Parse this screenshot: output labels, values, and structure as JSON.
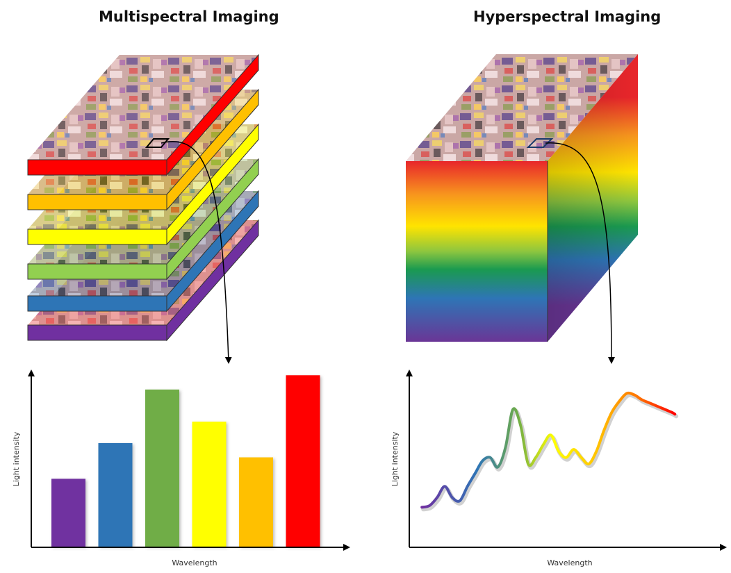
{
  "left": {
    "title": "Multispectral Imaging",
    "layers": [
      {
        "band": "violet",
        "color": "#7030a0"
      },
      {
        "band": "blue",
        "color": "#2e75b6"
      },
      {
        "band": "green",
        "color": "#92d050"
      },
      {
        "band": "yellow",
        "color": "#ffff00"
      },
      {
        "band": "orange",
        "color": "#ffc000"
      },
      {
        "band": "red",
        "color": "#ff0000"
      }
    ]
  },
  "right": {
    "title": "Hyperspectral Imaging"
  },
  "chart_data": [
    {
      "type": "bar",
      "title": "",
      "xlabel": "Wavelength",
      "ylabel": "Light intensity",
      "categories": [
        "violet",
        "blue",
        "green",
        "yellow",
        "orange",
        "red"
      ],
      "values": [
        38,
        58,
        88,
        70,
        50,
        96
      ],
      "colors": [
        "#7030a0",
        "#2e75b6",
        "#70ad47",
        "#ffff00",
        "#ffc000",
        "#ff0000"
      ],
      "ylim": [
        0,
        100
      ]
    },
    {
      "type": "line",
      "title": "",
      "xlabel": "Wavelength",
      "ylabel": "Light intensity",
      "x": [
        0,
        3,
        6,
        9,
        12,
        15,
        18,
        21,
        24,
        27,
        30,
        33,
        36,
        39,
        42,
        45,
        48,
        51,
        54,
        57,
        60,
        63,
        66,
        69,
        72,
        75,
        78,
        81,
        84,
        87,
        90,
        93,
        96,
        99,
        100
      ],
      "y": [
        25,
        26,
        31,
        38,
        31,
        29,
        38,
        46,
        54,
        56,
        50,
        62,
        86,
        76,
        52,
        56,
        64,
        70,
        60,
        56,
        61,
        56,
        52,
        60,
        73,
        84,
        91,
        96,
        95,
        92,
        90,
        88,
        86,
        84,
        83
      ],
      "xlim": [
        -5,
        120
      ],
      "ylim": [
        0,
        110
      ],
      "gradient_stops": [
        {
          "at": 0.0,
          "color": "#7030a0"
        },
        {
          "at": 0.22,
          "color": "#2e75b6"
        },
        {
          "at": 0.38,
          "color": "#70ad47"
        },
        {
          "at": 0.52,
          "color": "#ffff00"
        },
        {
          "at": 0.7,
          "color": "#ffc000"
        },
        {
          "at": 0.86,
          "color": "#ff7000"
        },
        {
          "at": 1.0,
          "color": "#ff0000"
        }
      ]
    }
  ]
}
